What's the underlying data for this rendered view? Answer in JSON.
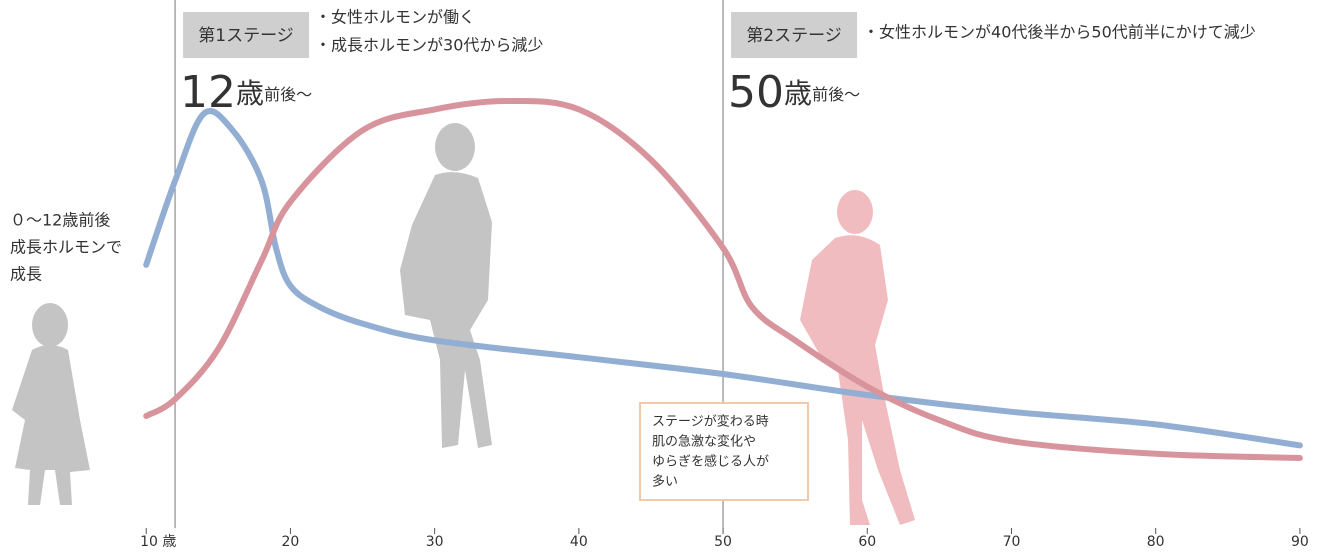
{
  "chart_data": {
    "type": "line",
    "x": [
      10,
      12,
      14,
      16,
      18,
      19,
      20,
      22,
      25,
      30,
      40,
      50,
      60,
      70,
      80,
      90
    ],
    "series": [
      {
        "color": "#93aed3",
        "x": [
          10,
          12,
          14,
          16,
          18,
          19,
          20,
          22,
          25,
          30,
          40,
          50,
          60,
          70,
          80,
          90
        ],
        "values": [
          56,
          76,
          92,
          88,
          76,
          60,
          51,
          46,
          42,
          38,
          34,
          30,
          25,
          21,
          18,
          13
        ]
      },
      {
        "color": "#d8949c",
        "x": [
          10,
          12,
          15,
          18,
          20,
          25,
          30,
          35,
          40,
          45,
          50,
          52,
          55,
          60,
          65,
          70,
          80,
          90
        ],
        "values": [
          20,
          24,
          36,
          57,
          71,
          88,
          93,
          95,
          93,
          81,
          60,
          46,
          38,
          27,
          19,
          14,
          11,
          10
        ]
      }
    ],
    "xlim": [
      0,
      90.7
    ],
    "ylim": [
      0,
      100
    ],
    "xticks": [
      {
        "value": 10,
        "label": "10 歳"
      },
      20,
      30,
      40,
      50,
      60,
      70,
      80,
      90
    ],
    "stages": [
      {
        "label": "第1ステージ",
        "notes": [
          "・女性ホルモンが働く",
          "・成長ホルモンが30代から減少"
        ],
        "age": 12,
        "age_unit": "歳",
        "age_note": "前後〜"
      },
      {
        "label": "第2ステージ",
        "notes": [
          "・女性ホルモンが40代後半から50代前半にかけて減少"
        ],
        "age": 50,
        "age_unit": "歳",
        "age_note": "前後〜"
      }
    ],
    "left_note": [
      "０～12歳前後",
      "成長ホルモンで",
      "成長"
    ],
    "box_note": [
      "ステージが変わる時",
      "肌の急激な変化や",
      "ゆらぎを感じる人が",
      "多い"
    ]
  }
}
